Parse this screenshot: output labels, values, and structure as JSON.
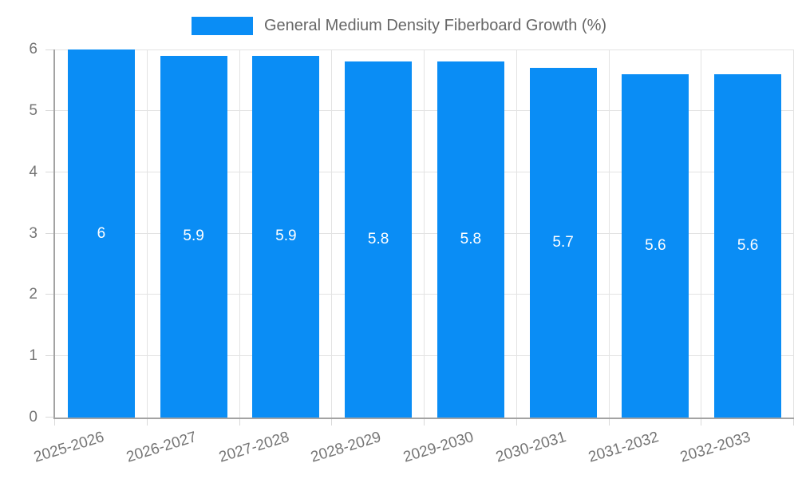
{
  "chart_data": {
    "type": "bar",
    "title": "General Medium Density Fiberboard Growth (%)",
    "categories": [
      "2025-2026",
      "2026-2027",
      "2027-2028",
      "2028-2029",
      "2029-2030",
      "2030-2031",
      "2031-2032",
      "2032-2033"
    ],
    "values": [
      6,
      5.9,
      5.9,
      5.8,
      5.8,
      5.7,
      5.6,
      5.6
    ],
    "value_labels": [
      "6",
      "5.9",
      "5.9",
      "5.8",
      "5.8",
      "5.7",
      "5.6",
      "5.6"
    ],
    "xlabel": "",
    "ylabel": "",
    "ylim": [
      0,
      6
    ],
    "yticks": [
      "0",
      "1",
      "2",
      "3",
      "4",
      "5",
      "6"
    ],
    "grid": true,
    "legend_position": "top",
    "x_label_rotation_deg": -17,
    "colors": {
      "bar": "#0A8DF5",
      "bar_label": "#FFFFFF",
      "axis_line": "#A3A3A3",
      "grid_line": "#E3E3E3",
      "tick_mark": "#D9D9D9",
      "tick_text": "#757575",
      "legend_text": "#666666",
      "background": "#FFFFFF"
    }
  }
}
